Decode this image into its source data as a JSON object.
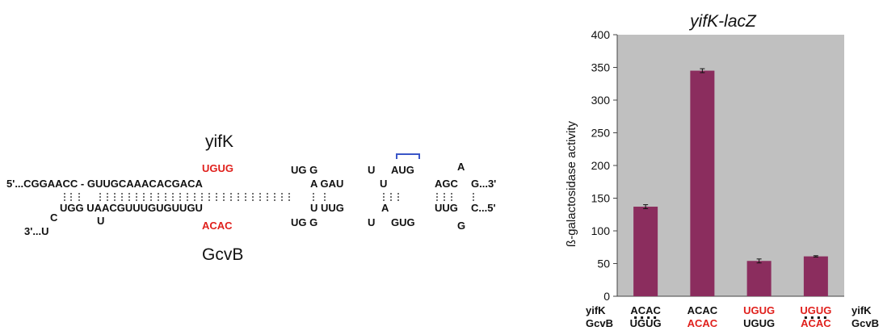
{
  "diagram": {
    "top_label": "yifK",
    "bottom_label": "GcvB",
    "red_top": "UGUG",
    "red_bottom": "ACAC",
    "colors": {
      "highlight": "#e0201c",
      "bracket": "#3a56c8"
    },
    "top_strand": [
      {
        "id": "t1",
        "text": "5'...CGGAACC - GUUGCAAACACGACA",
        "color": "#111111"
      },
      {
        "id": "t2",
        "text": "UG  G",
        "color": "#111111"
      },
      {
        "id": "t3",
        "text": "U",
        "color": "#111111"
      },
      {
        "id": "t4",
        "text": "AUG",
        "color": "#111111"
      },
      {
        "id": "t5",
        "text": "A",
        "color": "#111111"
      },
      {
        "id": "t6",
        "text": "A   GAU",
        "color": "#111111"
      },
      {
        "id": "t7",
        "text": "U",
        "color": "#111111"
      },
      {
        "id": "t8",
        "text": "AGC",
        "color": "#111111"
      },
      {
        "id": "t9",
        "text": "G...3'",
        "color": "#111111"
      }
    ],
    "bottom_strand": [
      {
        "id": "b1",
        "text": "UGG   UAACGUUUGUGUUGU",
        "color": "#111111"
      },
      {
        "id": "b2",
        "text": "U   UUG",
        "color": "#111111"
      },
      {
        "id": "b3",
        "text": "A",
        "color": "#111111"
      },
      {
        "id": "b4",
        "text": "UUG",
        "color": "#111111"
      },
      {
        "id": "b5",
        "text": "C...5'",
        "color": "#111111"
      },
      {
        "id": "b6",
        "text": "C",
        "color": "#111111"
      },
      {
        "id": "b7",
        "text": "U",
        "color": "#111111"
      },
      {
        "id": "b8",
        "text": "3'...U",
        "color": "#111111"
      },
      {
        "id": "b9",
        "text": "UG  G",
        "color": "#111111"
      },
      {
        "id": "b10",
        "text": "U",
        "color": "#111111"
      },
      {
        "id": "b11",
        "text": "GUG",
        "color": "#111111"
      },
      {
        "id": "b12",
        "text": "G",
        "color": "#111111"
      }
    ]
  },
  "chart_data": {
    "type": "bar",
    "title": "yifK-lacZ",
    "ylabel": "ß-galactosidase activity",
    "xlabel": "",
    "ylim": [
      0,
      400
    ],
    "yticks": [
      0,
      50,
      100,
      150,
      200,
      250,
      300,
      350,
      400
    ],
    "grid": false,
    "plot_background": "#c0c0c0",
    "bar_color": "#8b2d5e",
    "categories": [
      {
        "yifk": "ACAC",
        "gcvb": "UGUG",
        "yifk_color": "#111111",
        "gcvb_color": "#111111",
        "paired": true
      },
      {
        "yifk": "ACAC",
        "gcvb": "ACAC",
        "yifk_color": "#111111",
        "gcvb_color": "#e0201c",
        "paired": false
      },
      {
        "yifk": "UGUG",
        "gcvb": "UGUG",
        "yifk_color": "#e0201c",
        "gcvb_color": "#111111",
        "paired": false
      },
      {
        "yifk": "UGUG",
        "gcvb": "ACAC",
        "yifk_color": "#e0201c",
        "gcvb_color": "#e0201c",
        "paired": true
      }
    ],
    "values": [
      137,
      345,
      54,
      61
    ],
    "errors": [
      3,
      3,
      3,
      1
    ],
    "row_labels": {
      "left_top": "yifK",
      "left_bottom": "GcvB",
      "right_top": "yifK",
      "right_bottom": "GcvB"
    }
  }
}
